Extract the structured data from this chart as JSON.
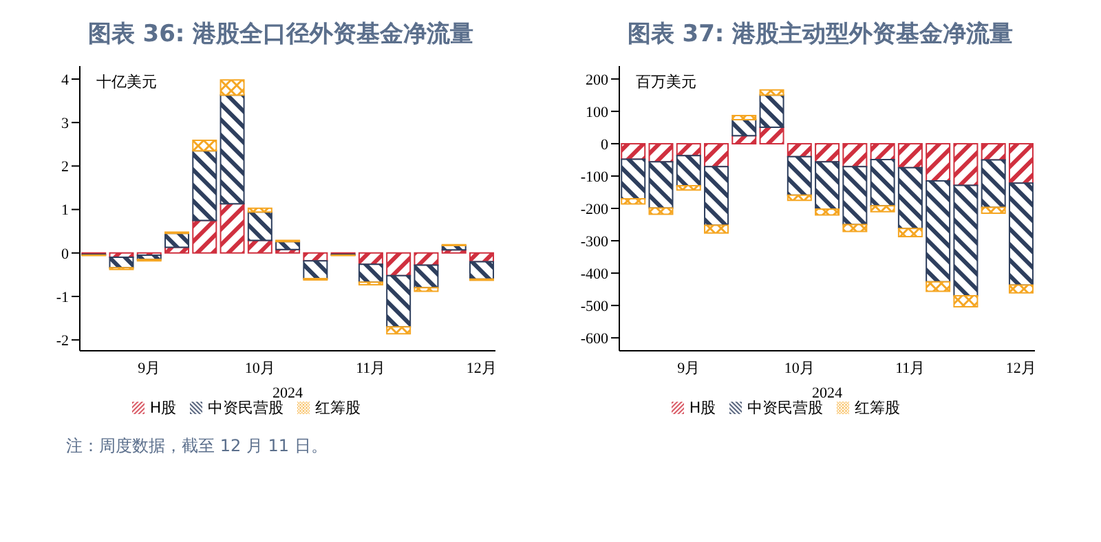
{
  "chart_data": [
    {
      "type": "bar",
      "title": "图表 36: 港股全口径外资基金净流量",
      "ylabel": "十亿美元",
      "xlabel": "2024",
      "stacked": true,
      "legend": "bottom",
      "categories": [
        null,
        null,
        "9月",
        null,
        null,
        null,
        "10月",
        null,
        null,
        null,
        "11月",
        null,
        null,
        null,
        "12月"
      ],
      "ylim": [
        -2.25,
        4.3
      ],
      "yticks": [
        -2,
        -1,
        0,
        1,
        2,
        3,
        4
      ],
      "annotations": [
        "注：周度数据，截至 12 月 11 日。"
      ],
      "series": [
        {
          "name": "H股",
          "color": "#d0303f",
          "values": [
            -0.03,
            -0.1,
            -0.05,
            0.13,
            0.75,
            1.13,
            0.29,
            0.08,
            -0.18,
            -0.03,
            -0.26,
            -0.52,
            -0.28,
            0.07,
            -0.2
          ]
        },
        {
          "name": "中资民营股",
          "color": "#2e3f5e",
          "values": [
            -0.02,
            -0.24,
            -0.1,
            0.32,
            1.6,
            2.5,
            0.65,
            0.18,
            -0.41,
            -0.02,
            -0.41,
            -1.18,
            -0.52,
            0.1,
            -0.4
          ]
        },
        {
          "name": "红筹股",
          "color": "#f5a623",
          "values": [
            -0.01,
            -0.04,
            -0.03,
            0.03,
            0.24,
            0.35,
            0.09,
            0.03,
            -0.03,
            -0.01,
            -0.06,
            -0.16,
            -0.08,
            0.02,
            -0.03
          ]
        }
      ]
    },
    {
      "type": "bar",
      "title": "图表 37: 港股主动型外资基金净流量",
      "ylabel": "百万美元",
      "xlabel": "2024",
      "stacked": true,
      "legend": "bottom",
      "categories": [
        null,
        null,
        "9月",
        null,
        null,
        null,
        "10月",
        null,
        null,
        null,
        "11月",
        null,
        null,
        null,
        "12月"
      ],
      "ylim": [
        -640,
        240
      ],
      "yticks": [
        -600,
        -500,
        -400,
        -300,
        -200,
        -100,
        0,
        100,
        200
      ],
      "series": [
        {
          "name": "H股",
          "color": "#d0303f",
          "values": [
            -48,
            -56,
            -37,
            -71,
            25,
            51,
            -40,
            -56,
            -71,
            -49,
            -74,
            -115,
            -129,
            -50,
            -122
          ]
        },
        {
          "name": "中资民营股",
          "color": "#2e3f5e",
          "values": [
            -122,
            -143,
            -93,
            -181,
            49,
            99,
            -119,
            -146,
            -179,
            -143,
            -188,
            -312,
            -341,
            -147,
            -315
          ]
        },
        {
          "name": "红筹股",
          "color": "#f5a623",
          "values": [
            -16,
            -19,
            -13,
            -24,
            13,
            16,
            -16,
            -18,
            -21,
            -18,
            -25,
            -29,
            -34,
            -18,
            -24
          ]
        }
      ]
    }
  ]
}
